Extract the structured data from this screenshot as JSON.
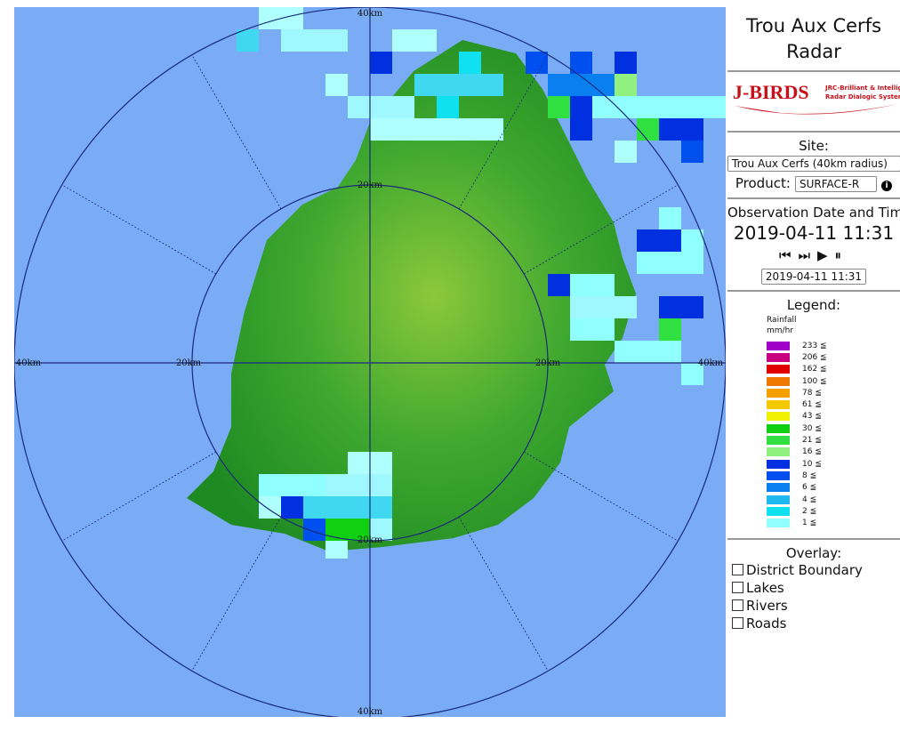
{
  "header": {
    "title": "Trou Aux Cerfs Radar"
  },
  "logo": {
    "name": "J-BIRDS",
    "tagline_1": "JRC-Brilliant & Intelligent",
    "tagline_2": "Radar Dialogic System"
  },
  "site": {
    "label": "Site:",
    "value": "Trou Aux Cerfs (40km radius)"
  },
  "product": {
    "label": "Product:",
    "value": "SURFACE-R"
  },
  "observation": {
    "label": "Observation Date and Time",
    "datetime": "2019-04-11 11:31",
    "selected": "2019-04-11 11:31"
  },
  "legend": {
    "title": "Legend:",
    "quantity": "Rainfall",
    "unit": "mm/hr",
    "items": [
      {
        "label": "233 ≦",
        "color": "#a000c8"
      },
      {
        "label": "206 ≦",
        "color": "#c8007f"
      },
      {
        "label": "162 ≦",
        "color": "#e00000"
      },
      {
        "label": "100 ≦",
        "color": "#f07800"
      },
      {
        "label": "78 ≦",
        "color": "#f5a000"
      },
      {
        "label": "61 ≦",
        "color": "#f5c800"
      },
      {
        "label": "43 ≦",
        "color": "#f0f000"
      },
      {
        "label": "30 ≦",
        "color": "#10d010"
      },
      {
        "label": "21 ≦",
        "color": "#30e040"
      },
      {
        "label": "16 ≦",
        "color": "#90f080"
      },
      {
        "label": "10 ≦",
        "color": "#0030e0"
      },
      {
        "label": "8 ≦",
        "color": "#0050f0"
      },
      {
        "label": "6 ≦",
        "color": "#0a80f0"
      },
      {
        "label": "4 ≦",
        "color": "#20b8f0"
      },
      {
        "label": "2 ≦",
        "color": "#10e0f0"
      },
      {
        "label": "1 ≦",
        "color": "#90ffff"
      }
    ]
  },
  "overlay": {
    "title": "Overlay:",
    "options": [
      "District Boundary",
      "Lakes",
      "Rivers",
      "Roads"
    ]
  },
  "map": {
    "range_labels": [
      "40km",
      "20km",
      "40km",
      "20km",
      "20km",
      "40km",
      "20km",
      "40km"
    ]
  }
}
